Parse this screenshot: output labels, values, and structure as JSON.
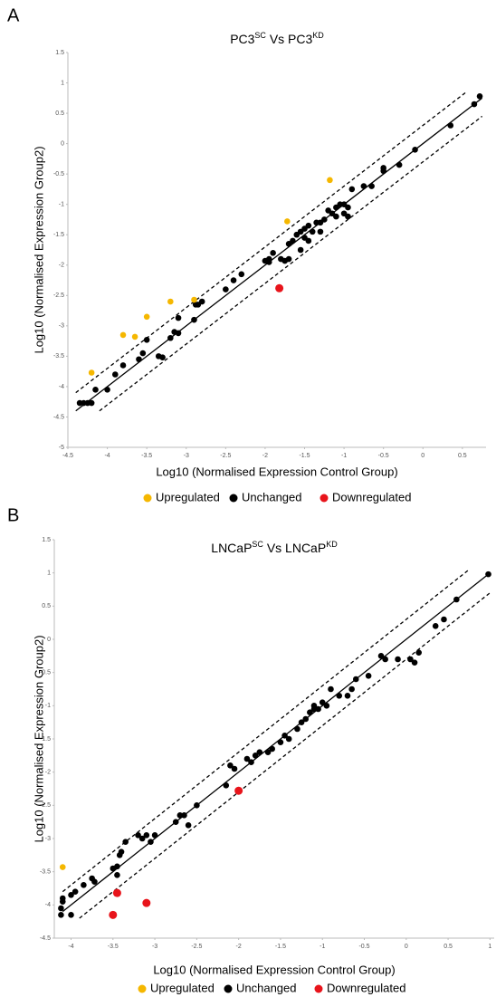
{
  "chart_data": [
    {
      "type": "scatter",
      "panel_label": "A",
      "title": [
        "PC3",
        "SC",
        " Vs PC3",
        "KD"
      ],
      "title_superscript": [
        false,
        true,
        false,
        true
      ],
      "xlabel": "Log10 (Normalised Expression Control Group)",
      "ylabel": "Log10 (Normalised Expression Group2)",
      "xlim": [
        -4.5,
        0.8
      ],
      "ylim": [
        -5,
        1.5
      ],
      "xticks": [
        -4.5,
        -4,
        -3.5,
        -3,
        -2.5,
        -2,
        -1.5,
        -1,
        -0.5,
        0,
        0.5
      ],
      "yticks": [
        1.5,
        1,
        0.5,
        0,
        -0.5,
        -1,
        -1.5,
        -2,
        -2.5,
        -3,
        -3.5,
        -4,
        -4.5,
        -5
      ],
      "grid": false,
      "reference_lines": [
        {
          "offset": 0,
          "dashed": false,
          "x_range": [
            -4.4,
            0.75
          ]
        },
        {
          "offset": 0.3,
          "dashed": true,
          "x_range": [
            -4.4,
            0.55
          ]
        },
        {
          "offset": -0.3,
          "dashed": true,
          "x_range": [
            -4.1,
            0.75
          ]
        }
      ],
      "series": [
        {
          "name": "Upregulated",
          "color": "#f5b700",
          "x": [
            -4.2,
            -3.8,
            -3.65,
            -3.5,
            -3.2,
            -2.9,
            -1.72,
            -1.18
          ],
          "values": [
            -3.77,
            -3.15,
            -3.18,
            -2.85,
            -2.6,
            -2.57,
            -1.28,
            -0.6
          ]
        },
        {
          "name": "Unchanged",
          "color": "#000000",
          "x": [
            -4.35,
            -4.3,
            -4.25,
            -4.2,
            -4.15,
            -4.0,
            -3.9,
            -3.8,
            -3.6,
            -3.55,
            -3.5,
            -3.35,
            -3.3,
            -3.2,
            -3.15,
            -3.1,
            -3.1,
            -2.9,
            -2.88,
            -2.85,
            -2.8,
            -2.5,
            -2.4,
            -2.3,
            -2.0,
            -1.95,
            -1.95,
            -1.9,
            -1.8,
            -1.75,
            -1.7,
            -1.7,
            -1.65,
            -1.6,
            -1.55,
            -1.55,
            -1.5,
            -1.5,
            -1.45,
            -1.45,
            -1.4,
            -1.35,
            -1.3,
            -1.3,
            -1.25,
            -1.2,
            -1.15,
            -1.1,
            -1.1,
            -1.05,
            -1.0,
            -1.0,
            -0.95,
            -0.95,
            -0.9,
            -0.75,
            -0.65,
            -0.5,
            -0.5,
            -0.3,
            -0.1,
            0.35,
            0.65,
            0.72
          ],
          "values": [
            -4.27,
            -4.27,
            -4.27,
            -4.27,
            -4.05,
            -4.05,
            -3.8,
            -3.65,
            -3.55,
            -3.45,
            -3.23,
            -3.5,
            -3.52,
            -3.2,
            -3.1,
            -3.12,
            -2.87,
            -2.9,
            -2.65,
            -2.65,
            -2.6,
            -2.4,
            -2.25,
            -2.15,
            -1.93,
            -1.95,
            -1.9,
            -1.8,
            -1.9,
            -1.93,
            -1.9,
            -1.65,
            -1.6,
            -1.5,
            -1.75,
            -1.45,
            -1.4,
            -1.55,
            -1.35,
            -1.6,
            -1.45,
            -1.3,
            -1.3,
            -1.45,
            -1.25,
            -1.1,
            -1.15,
            -1.05,
            -1.2,
            -1.0,
            -1.0,
            -1.15,
            -1.05,
            -1.2,
            -0.75,
            -0.7,
            -0.7,
            -0.4,
            -0.45,
            -0.35,
            -0.1,
            0.3,
            0.65,
            0.78
          ]
        },
        {
          "name": "Downregulated",
          "color": "#e8141b",
          "x": [
            -1.82
          ],
          "values": [
            -2.38
          ]
        }
      ]
    },
    {
      "type": "scatter",
      "panel_label": "B",
      "title": [
        "LNCaP",
        "SC",
        " Vs LNCaP",
        "KD"
      ],
      "title_superscript": [
        false,
        true,
        false,
        true
      ],
      "xlabel": "Log10 (Normalised Expression Control Group)",
      "ylabel": "Log10 (Normalised Expression Group2)",
      "xlim": [
        -4.2,
        1.05
      ],
      "ylim": [
        -4.5,
        1.5
      ],
      "xticks": [
        -4,
        -3.5,
        -3,
        -2.5,
        -2,
        -1.5,
        -1,
        -0.5,
        0,
        0.5,
        1
      ],
      "yticks": [
        1.5,
        1,
        0.5,
        0,
        -0.5,
        -1,
        -1.5,
        -2,
        -2.5,
        -3,
        -3.5,
        -4,
        -4.5
      ],
      "grid": false,
      "reference_lines": [
        {
          "offset": 0,
          "dashed": false,
          "x_range": [
            -4.1,
            1
          ]
        },
        {
          "offset": 0.3,
          "dashed": true,
          "x_range": [
            -4.1,
            0.75
          ]
        },
        {
          "offset": -0.3,
          "dashed": true,
          "x_range": [
            -3.9,
            1
          ]
        }
      ],
      "series": [
        {
          "name": "Upregulated",
          "color": "#f5b700",
          "x": [
            -4.1
          ],
          "values": [
            -3.43
          ]
        },
        {
          "name": "Unchanged",
          "color": "#000000",
          "x": [
            -4.12,
            -4.12,
            -4.1,
            -4.1,
            -4.0,
            -4.0,
            -3.95,
            -3.85,
            -3.75,
            -3.72,
            -3.5,
            -3.45,
            -3.45,
            -3.42,
            -3.4,
            -3.35,
            -3.2,
            -3.15,
            -3.1,
            -3.05,
            -3.0,
            -2.75,
            -2.7,
            -2.65,
            -2.6,
            -2.5,
            -2.15,
            -2.1,
            -2.05,
            -1.9,
            -1.85,
            -1.8,
            -1.75,
            -1.65,
            -1.6,
            -1.5,
            -1.45,
            -1.4,
            -1.3,
            -1.25,
            -1.2,
            -1.15,
            -1.1,
            -1.1,
            -1.05,
            -1.0,
            -0.95,
            -0.9,
            -0.8,
            -0.7,
            -0.65,
            -0.6,
            -0.45,
            -0.3,
            -0.25,
            -0.1,
            0.05,
            0.1,
            0.15,
            0.35,
            0.45,
            0.6,
            0.98
          ],
          "values": [
            -4.15,
            -4.05,
            -3.95,
            -3.9,
            -4.15,
            -3.85,
            -3.8,
            -3.7,
            -3.6,
            -3.65,
            -3.45,
            -3.55,
            -3.42,
            -3.25,
            -3.2,
            -3.05,
            -2.95,
            -3.0,
            -2.95,
            -3.05,
            -2.95,
            -2.75,
            -2.65,
            -2.65,
            -2.8,
            -2.5,
            -2.2,
            -1.9,
            -1.95,
            -1.8,
            -1.85,
            -1.75,
            -1.7,
            -1.7,
            -1.65,
            -1.55,
            -1.45,
            -1.5,
            -1.35,
            -1.25,
            -1.2,
            -1.1,
            -1.05,
            -1.0,
            -1.05,
            -0.95,
            -1.0,
            -0.75,
            -0.85,
            -0.85,
            -0.75,
            -0.6,
            -0.55,
            -0.25,
            -0.3,
            -0.3,
            -0.3,
            -0.35,
            -0.2,
            0.2,
            0.3,
            0.6,
            0.98
          ]
        },
        {
          "name": "Downregulated",
          "color": "#e8141b",
          "x": [
            -3.5,
            -3.45,
            -3.1,
            -2.0
          ],
          "values": [
            -4.15,
            -3.82,
            -3.97,
            -2.28
          ]
        }
      ]
    }
  ]
}
